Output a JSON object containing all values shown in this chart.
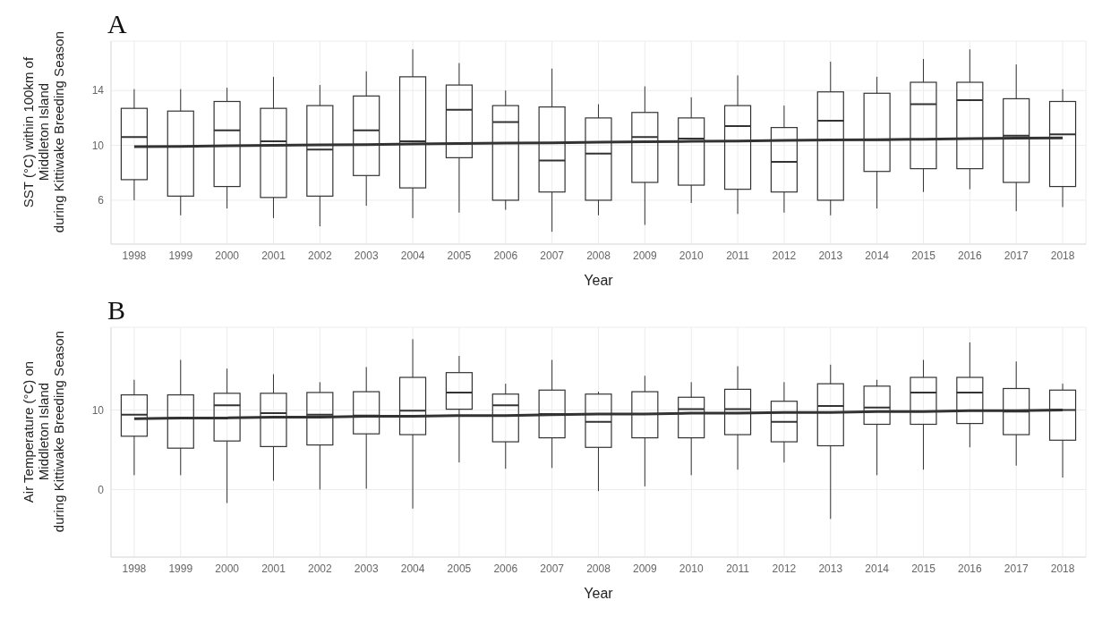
{
  "chart_data": [
    {
      "type": "box",
      "title": "A",
      "xlabel": "Year",
      "ylabel": "SST (°C) within 100km of\nMiddleton Island\nduring Kittiwake Breeding Season",
      "categories": [
        "1998",
        "1999",
        "2000",
        "2001",
        "2002",
        "2003",
        "2004",
        "2005",
        "2006",
        "2007",
        "2008",
        "2009",
        "2010",
        "2011",
        "2012",
        "2013",
        "2014",
        "2015",
        "2016",
        "2017",
        "2018"
      ],
      "ylim": [
        2.8,
        17.6
      ],
      "yticks": [
        6,
        10,
        14
      ],
      "grid": true,
      "series": [
        {
          "type": "box",
          "color": "#333333",
          "boxes": [
            {
              "low": 6.0,
              "q1": 7.5,
              "median": 10.6,
              "q3": 12.7,
              "high": 14.1
            },
            {
              "low": 4.9,
              "q1": 6.3,
              "median": 9.9,
              "q3": 12.5,
              "high": 14.1
            },
            {
              "low": 5.4,
              "q1": 7.0,
              "median": 11.1,
              "q3": 13.2,
              "high": 14.2
            },
            {
              "low": 4.7,
              "q1": 6.2,
              "median": 10.3,
              "q3": 12.7,
              "high": 15.0
            },
            {
              "low": 4.1,
              "q1": 6.3,
              "median": 9.7,
              "q3": 12.9,
              "high": 14.4
            },
            {
              "low": 5.6,
              "q1": 7.8,
              "median": 11.1,
              "q3": 13.6,
              "high": 15.4
            },
            {
              "low": 4.7,
              "q1": 6.9,
              "median": 10.3,
              "q3": 15.0,
              "high": 17.0
            },
            {
              "low": 5.1,
              "q1": 9.1,
              "median": 12.6,
              "q3": 14.4,
              "high": 16.0
            },
            {
              "low": 5.3,
              "q1": 6.0,
              "median": 11.7,
              "q3": 12.9,
              "high": 14.0
            },
            {
              "low": 3.7,
              "q1": 6.6,
              "median": 8.9,
              "q3": 12.8,
              "high": 15.6
            },
            {
              "low": 4.9,
              "q1": 6.0,
              "median": 9.4,
              "q3": 12.0,
              "high": 13.0
            },
            {
              "low": 4.2,
              "q1": 7.3,
              "median": 10.6,
              "q3": 12.4,
              "high": 14.3
            },
            {
              "low": 5.8,
              "q1": 7.1,
              "median": 10.5,
              "q3": 12.0,
              "high": 13.5
            },
            {
              "low": 5.0,
              "q1": 6.8,
              "median": 11.4,
              "q3": 12.9,
              "high": 15.1
            },
            {
              "low": 5.1,
              "q1": 6.6,
              "median": 8.8,
              "q3": 11.3,
              "high": 12.9
            },
            {
              "low": 4.9,
              "q1": 6.0,
              "median": 11.8,
              "q3": 13.9,
              "high": 16.1
            },
            {
              "low": 5.4,
              "q1": 8.1,
              "median": 10.4,
              "q3": 13.8,
              "high": 15.0
            },
            {
              "low": 6.6,
              "q1": 8.3,
              "median": 13.0,
              "q3": 14.6,
              "high": 16.3
            },
            {
              "low": 6.8,
              "q1": 8.3,
              "median": 13.3,
              "q3": 14.6,
              "high": 17.0
            },
            {
              "low": 5.2,
              "q1": 7.3,
              "median": 10.7,
              "q3": 13.4,
              "high": 15.9
            },
            {
              "low": 5.5,
              "q1": 7.0,
              "median": 10.8,
              "q3": 13.2,
              "high": 14.1
            }
          ]
        },
        {
          "type": "line",
          "color": "#333333",
          "values": [
            9.9,
            9.93,
            9.97,
            10.0,
            10.03,
            10.06,
            10.1,
            10.13,
            10.16,
            10.19,
            10.23,
            10.26,
            10.29,
            10.32,
            10.36,
            10.39,
            10.42,
            10.45,
            10.49,
            10.52,
            10.55
          ]
        }
      ]
    },
    {
      "type": "box",
      "title": "B",
      "xlabel": "Year",
      "ylabel": "Air Temperature (°C) on\nMiddleton Island\nduring Kittiwake Breeding Season",
      "categories": [
        "1998",
        "1999",
        "2000",
        "2001",
        "2002",
        "2003",
        "2004",
        "2005",
        "2006",
        "2007",
        "2008",
        "2009",
        "2010",
        "2011",
        "2012",
        "2013",
        "2014",
        "2015",
        "2016",
        "2017",
        "2018"
      ],
      "ylim": [
        -8.5,
        20.4
      ],
      "yticks": [
        0,
        10
      ],
      "grid": true,
      "series": [
        {
          "type": "box",
          "color": "#333333",
          "boxes": [
            {
              "low": 1.8,
              "q1": 6.7,
              "median": 9.4,
              "q3": 11.9,
              "high": 13.8
            },
            {
              "low": 1.8,
              "q1": 5.2,
              "median": 9.0,
              "q3": 11.9,
              "high": 16.3
            },
            {
              "low": -1.7,
              "q1": 6.1,
              "median": 10.6,
              "q3": 12.1,
              "high": 15.2
            },
            {
              "low": 1.1,
              "q1": 5.4,
              "median": 9.6,
              "q3": 12.1,
              "high": 14.5
            },
            {
              "low": 0.0,
              "q1": 5.6,
              "median": 9.4,
              "q3": 12.2,
              "high": 13.5
            },
            {
              "low": 0.1,
              "q1": 7.0,
              "median": 9.3,
              "q3": 12.3,
              "high": 15.4
            },
            {
              "low": -2.4,
              "q1": 6.9,
              "median": 9.9,
              "q3": 14.1,
              "high": 18.9
            },
            {
              "low": 3.4,
              "q1": 10.1,
              "median": 12.2,
              "q3": 14.7,
              "high": 16.8
            },
            {
              "low": 2.6,
              "q1": 6.0,
              "median": 10.6,
              "q3": 12.0,
              "high": 13.3
            },
            {
              "low": 2.7,
              "q1": 6.5,
              "median": 9.5,
              "q3": 12.5,
              "high": 16.3
            },
            {
              "low": -0.2,
              "q1": 5.3,
              "median": 8.5,
              "q3": 12.0,
              "high": 12.3
            },
            {
              "low": 0.4,
              "q1": 6.5,
              "median": 9.5,
              "q3": 12.3,
              "high": 14.3
            },
            {
              "low": 1.8,
              "q1": 6.5,
              "median": 10.1,
              "q3": 11.6,
              "high": 13.5
            },
            {
              "low": 2.5,
              "q1": 6.9,
              "median": 10.1,
              "q3": 12.6,
              "high": 15.5
            },
            {
              "low": 3.4,
              "q1": 6.0,
              "median": 8.5,
              "q3": 11.1,
              "high": 13.5
            },
            {
              "low": -3.7,
              "q1": 5.5,
              "median": 10.5,
              "q3": 13.3,
              "high": 15.7
            },
            {
              "low": 1.8,
              "q1": 8.2,
              "median": 10.3,
              "q3": 13.0,
              "high": 13.8
            },
            {
              "low": 2.5,
              "q1": 8.2,
              "median": 12.2,
              "q3": 14.1,
              "high": 16.3
            },
            {
              "low": 5.3,
              "q1": 8.3,
              "median": 12.2,
              "q3": 14.1,
              "high": 18.5
            },
            {
              "low": 3.0,
              "q1": 6.9,
              "median": 9.8,
              "q3": 12.7,
              "high": 16.1
            },
            {
              "low": 1.5,
              "q1": 6.2,
              "median": 10.0,
              "q3": 12.5,
              "high": 13.3
            }
          ]
        },
        {
          "type": "line",
          "color": "#333333",
          "values": [
            8.9,
            9.0,
            9.0,
            9.1,
            9.1,
            9.2,
            9.2,
            9.3,
            9.3,
            9.4,
            9.5,
            9.5,
            9.6,
            9.6,
            9.7,
            9.7,
            9.8,
            9.8,
            9.9,
            9.9,
            10.0
          ]
        }
      ]
    }
  ]
}
